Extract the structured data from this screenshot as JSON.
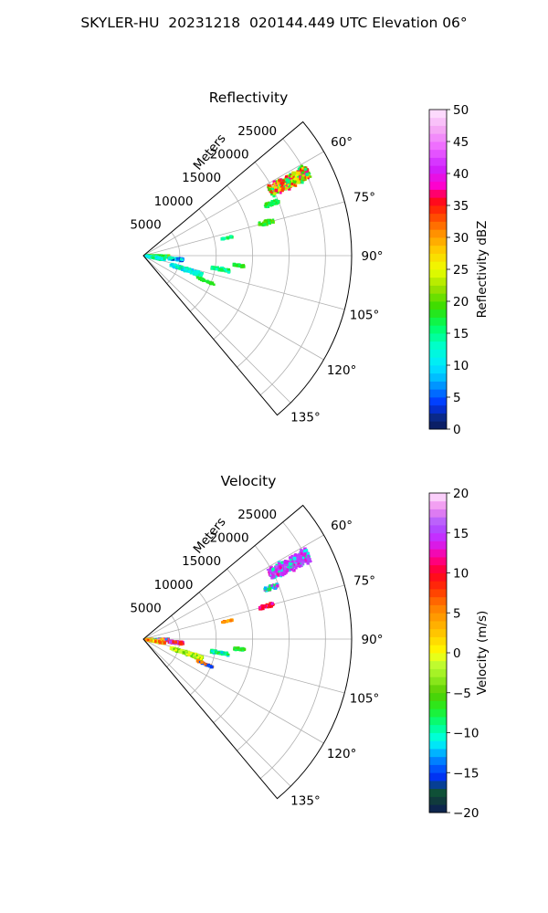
{
  "page": {
    "title": "SKYLER-HU  20231218  020144.449 UTC Elevation 06°"
  },
  "chart_data": [
    {
      "type": "polar-sector",
      "title": "Reflectivity",
      "radial_axis_label": "Meters",
      "radial_ticks": [
        5000,
        10000,
        15000,
        20000,
        25000
      ],
      "radial_tick_labels": [
        "5000",
        "10000",
        "15000",
        "20000",
        "25000"
      ],
      "rlim": [
        0,
        28600
      ],
      "angular_range_deg": [
        50,
        140
      ],
      "angular_ticks": [
        60,
        75,
        90,
        105,
        120,
        135
      ],
      "angular_tick_labels": [
        "60°",
        "75°",
        "90°",
        "105°",
        "120°",
        "135°"
      ],
      "grid": true,
      "colorbar": {
        "label": "Reflectivity dBZ",
        "range": [
          0,
          50
        ],
        "ticks": [
          0,
          5,
          10,
          15,
          20,
          25,
          30,
          35,
          40,
          45,
          50
        ],
        "tick_labels": [
          "0",
          "5",
          "10",
          "15",
          "20",
          "25",
          "30",
          "35",
          "40",
          "45",
          "50"
        ],
        "colormap": [
          [
            0,
            "#0b1a55"
          ],
          [
            2,
            "#0a2a8c"
          ],
          [
            4,
            "#0033ff"
          ],
          [
            6,
            "#0077ff"
          ],
          [
            8,
            "#00bbff"
          ],
          [
            10,
            "#00eaff"
          ],
          [
            13,
            "#00ffcc"
          ],
          [
            16,
            "#00ff66"
          ],
          [
            19,
            "#33dd00"
          ],
          [
            22,
            "#99e000"
          ],
          [
            25,
            "#eeff00"
          ],
          [
            28,
            "#ffcc00"
          ],
          [
            31,
            "#ff8800"
          ],
          [
            34,
            "#ff3300"
          ],
          [
            36,
            "#ff0022"
          ],
          [
            38,
            "#ff00cc"
          ],
          [
            41,
            "#cc22ff"
          ],
          [
            44,
            "#ee66ff"
          ],
          [
            47,
            "#f5aaf5"
          ],
          [
            50,
            "#ffe6ff"
          ]
        ]
      },
      "echo_clusters": [
        {
          "az": 63,
          "r": [
            19500,
            25500
          ],
          "w": 5.0,
          "values": [
            16,
            20,
            24,
            28,
            34,
            37
          ]
        },
        {
          "az": 68,
          "r": [
            18000,
            20000
          ],
          "w": 2.0,
          "values": [
            16,
            19
          ]
        },
        {
          "az": 75,
          "r": [
            16500,
            18500
          ],
          "w": 2.0,
          "values": [
            17,
            20
          ]
        },
        {
          "az": 78,
          "r": [
            11000,
            12500
          ],
          "w": 1.0,
          "values": [
            14,
            17
          ]
        },
        {
          "az": 92,
          "r": [
            500,
            3500
          ],
          "w": 5.0,
          "values": [
            13,
            16,
            19,
            21
          ]
        },
        {
          "az": 100,
          "r": [
            400,
            3000
          ],
          "w": 6.0,
          "values": [
            10,
            13,
            16
          ]
        },
        {
          "az": 96,
          "r": [
            3500,
            5500
          ],
          "w": 4.0,
          "values": [
            3,
            6,
            10,
            13
          ]
        },
        {
          "az": 108,
          "r": [
            4000,
            8500
          ],
          "w": 4.0,
          "values": [
            8,
            11,
            13,
            15
          ]
        },
        {
          "az": 100,
          "r": [
            9500,
            12000
          ],
          "w": 2.0,
          "values": [
            13,
            16,
            18
          ]
        },
        {
          "az": 96,
          "r": [
            12500,
            14000
          ],
          "w": 1.5,
          "values": [
            17,
            19
          ]
        },
        {
          "az": 112,
          "r": [
            8000,
            10500
          ],
          "w": 1.0,
          "values": [
            18
          ]
        }
      ]
    },
    {
      "type": "polar-sector",
      "title": "Velocity",
      "radial_axis_label": "Meters",
      "radial_ticks": [
        5000,
        10000,
        15000,
        20000,
        25000
      ],
      "radial_tick_labels": [
        "5000",
        "10000",
        "15000",
        "20000",
        "25000"
      ],
      "rlim": [
        0,
        28600
      ],
      "angular_range_deg": [
        50,
        140
      ],
      "angular_ticks": [
        60,
        75,
        90,
        105,
        120,
        135
      ],
      "angular_tick_labels": [
        "60°",
        "75°",
        "90°",
        "105°",
        "120°",
        "135°"
      ],
      "grid": true,
      "colorbar": {
        "label": "Velocity (m/s)",
        "range": [
          -20,
          20
        ],
        "ticks": [
          -20,
          -15,
          -10,
          -5,
          0,
          5,
          10,
          15,
          20
        ],
        "tick_labels": [
          "−20",
          "−15",
          "−10",
          "−5",
          "0",
          "5",
          "10",
          "15",
          "20"
        ],
        "colormap": [
          [
            -20,
            "#0b1a55"
          ],
          [
            -18,
            "#114433"
          ],
          [
            -17,
            "#0c5c3a"
          ],
          [
            -16,
            "#0022ee"
          ],
          [
            -14,
            "#0066ff"
          ],
          [
            -12,
            "#00ccff"
          ],
          [
            -11,
            "#00ffee"
          ],
          [
            -9,
            "#00ff88"
          ],
          [
            -7,
            "#22ee22"
          ],
          [
            -5,
            "#55cc00"
          ],
          [
            -3,
            "#99ee22"
          ],
          [
            -1,
            "#ccff33"
          ],
          [
            0,
            "#ffff00"
          ],
          [
            2,
            "#ffd000"
          ],
          [
            4,
            "#ffa500"
          ],
          [
            6,
            "#ff7700"
          ],
          [
            8,
            "#ff3300"
          ],
          [
            10,
            "#ff0022"
          ],
          [
            12,
            "#ff0099"
          ],
          [
            14,
            "#cc22ff"
          ],
          [
            16,
            "#aa55ff"
          ],
          [
            18,
            "#ee88ee"
          ],
          [
            20,
            "#ffe6ff"
          ]
        ]
      },
      "echo_clusters": [
        {
          "az": 63,
          "r": [
            19500,
            25500
          ],
          "w": 5.0,
          "values": [
            14,
            15,
            16,
            13,
            -10
          ]
        },
        {
          "az": 68,
          "r": [
            18000,
            20000
          ],
          "w": 2.0,
          "values": [
            -12,
            14,
            -8
          ]
        },
        {
          "az": 75,
          "r": [
            16500,
            18500
          ],
          "w": 2.0,
          "values": [
            10,
            9,
            13
          ]
        },
        {
          "az": 78,
          "r": [
            11000,
            12500
          ],
          "w": 1.0,
          "values": [
            6,
            4
          ]
        },
        {
          "az": 92,
          "r": [
            500,
            3500
          ],
          "w": 5.0,
          "values": [
            -8,
            -12,
            12,
            16,
            2
          ]
        },
        {
          "az": 100,
          "r": [
            400,
            3000
          ],
          "w": 6.0,
          "values": [
            0,
            2,
            5,
            -2,
            8
          ]
        },
        {
          "az": 96,
          "r": [
            3500,
            5500
          ],
          "w": 4.0,
          "values": [
            7,
            9,
            12,
            15
          ]
        },
        {
          "az": 108,
          "r": [
            4000,
            8500
          ],
          "w": 4.0,
          "values": [
            -3,
            -1,
            0,
            -5
          ]
        },
        {
          "az": 100,
          "r": [
            9500,
            12000
          ],
          "w": 2.0,
          "values": [
            -7,
            -9,
            -12
          ]
        },
        {
          "az": 96,
          "r": [
            12500,
            14000
          ],
          "w": 1.5,
          "values": [
            -8,
            -6
          ]
        },
        {
          "az": 112,
          "r": [
            8000,
            10500
          ],
          "w": 1.0,
          "values": [
            6,
            -15
          ]
        }
      ]
    }
  ]
}
